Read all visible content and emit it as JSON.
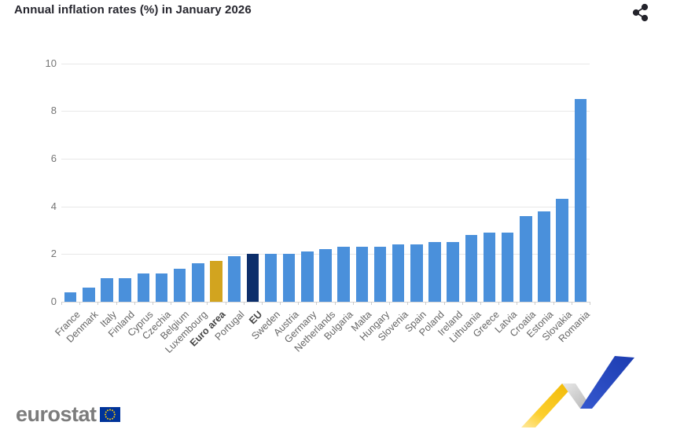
{
  "header": {
    "title": "Annual inflation rates (%) in January 2026"
  },
  "chart_data": {
    "type": "bar",
    "title": "Annual inflation rates (%) in January 2026",
    "xlabel": "",
    "ylabel": "",
    "ylim": [
      0,
      10
    ],
    "yticks": [
      0,
      2,
      4,
      6,
      8,
      10
    ],
    "grid": true,
    "legend": "none",
    "categories": [
      "France",
      "Denmark",
      "Italy",
      "Finland",
      "Cyprus",
      "Czechia",
      "Belgium",
      "Luxembourg",
      "Euro area",
      "Portugal",
      "EU",
      "Sweden",
      "Austria",
      "Germany",
      "Netherlands",
      "Bulgaria",
      "Malta",
      "Hungary",
      "Slovenia",
      "Spain",
      "Poland",
      "Ireland",
      "Lithuania",
      "Greece",
      "Latvia",
      "Croatia",
      "Estonia",
      "Slovakia",
      "Romania"
    ],
    "values": [
      0.4,
      0.6,
      1.0,
      1.0,
      1.2,
      1.2,
      1.4,
      1.6,
      1.7,
      1.9,
      2.0,
      2.0,
      2.0,
      2.1,
      2.2,
      2.3,
      2.3,
      2.3,
      2.4,
      2.4,
      2.5,
      2.5,
      2.8,
      2.9,
      2.9,
      3.6,
      3.8,
      4.3,
      8.5
    ],
    "bold_categories": [
      "Euro area",
      "EU"
    ],
    "colors": {
      "default": "#4a90db",
      "Euro area": "#d2a41f",
      "EU": "#0c2e6b"
    }
  },
  "footer": {
    "logo_text": "eurostat"
  },
  "icons": {
    "share": "share-icon",
    "eu_flag": "eu-flag-icon",
    "ribbon": "eurostat-ribbon-graphic"
  },
  "theme": {
    "grid_color": "#e8e8e8",
    "axis_text_color": "#757575",
    "label_color": "#666666",
    "title_color": "#26262e",
    "ribbon_yellow": "#f5c513",
    "ribbon_blue": "#2446bb",
    "flag_blue": "#003399",
    "flag_star_yellow": "#ffcc00"
  }
}
